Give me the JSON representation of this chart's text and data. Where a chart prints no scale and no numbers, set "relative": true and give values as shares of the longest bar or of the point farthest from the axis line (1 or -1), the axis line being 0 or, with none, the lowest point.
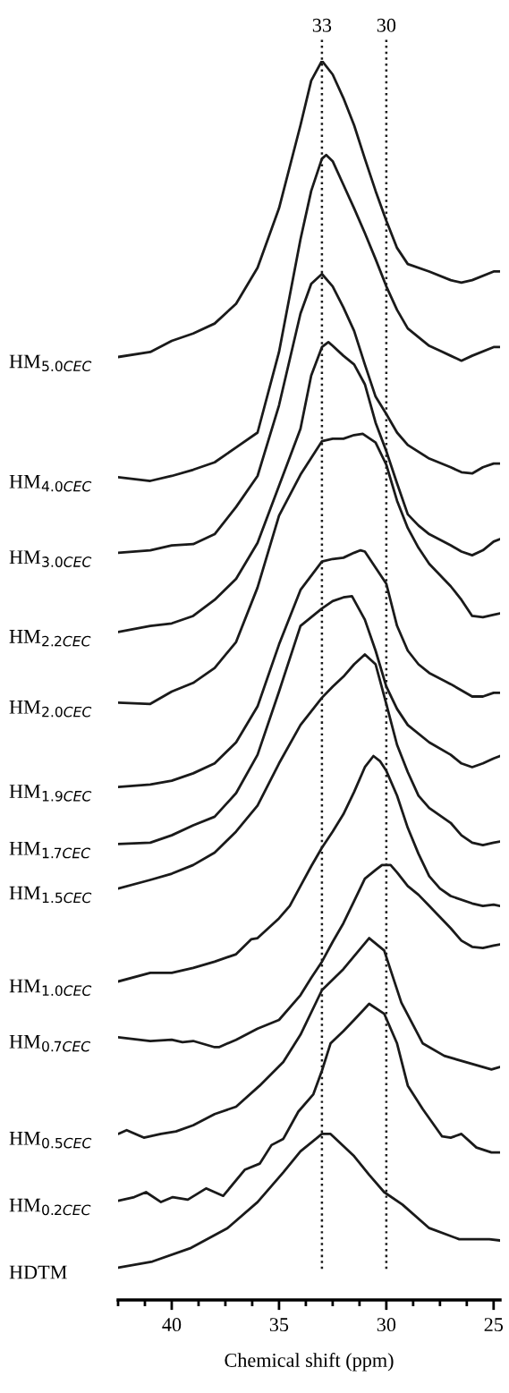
{
  "chart_data": {
    "type": "line",
    "xlabel": "Chemical shift (ppm)",
    "relative": true,
    "tick_labels": "x",
    "line_style": "solid",
    "xlim": [
      42.5,
      24.7
    ],
    "xticks": [
      40,
      35,
      30,
      25,
      {
        "value": 42.5,
        "label": null
      },
      {
        "value": 41.25,
        "label": null
      },
      {
        "value": 38.75,
        "label": null
      },
      {
        "value": 37.5,
        "label": null
      },
      {
        "value": 36.25,
        "label": null
      },
      {
        "value": 33.75,
        "label": null
      },
      {
        "value": 32.5,
        "label": null
      },
      {
        "value": 31.25,
        "label": null
      },
      {
        "value": 28.75,
        "label": null
      },
      {
        "value": 27.5,
        "label": null
      },
      {
        "value": 26.25,
        "label": null
      }
    ],
    "ref_lines": [
      {
        "axis": "x",
        "value": 33,
        "label": "33",
        "color": "#1a1a1a",
        "line_style": "dotted"
      },
      {
        "axis": "x",
        "value": 30,
        "label": "30",
        "color": "#1a1a1a",
        "line_style": "dotted"
      }
    ],
    "series": [
      {
        "name": "HM$_{5.0CEC}$",
        "color": "#1a1a1a",
        "x": [
          42.5,
          41,
          40,
          39,
          38,
          37,
          36,
          35,
          34,
          33.5,
          33,
          32.5,
          32,
          31.5,
          31,
          30.5,
          30,
          29.5,
          29,
          28,
          27,
          26.5,
          26,
          25,
          24.7
        ],
        "values": [
          0.761,
          0.765,
          0.774,
          0.78,
          0.788,
          0.804,
          0.833,
          0.881,
          0.948,
          0.984,
          1,
          0.989,
          0.97,
          0.948,
          0.921,
          0.895,
          0.871,
          0.849,
          0.836,
          0.83,
          0.823,
          0.821,
          0.823,
          0.83,
          0.83
        ]
      },
      {
        "name": "HM$_{4.0CEC}$",
        "color": "#1a1a1a",
        "x": [
          42.5,
          41,
          40,
          39,
          38,
          37,
          36,
          35,
          34,
          33.5,
          33,
          32.8,
          32.5,
          32,
          31.5,
          31,
          30.5,
          30,
          29.5,
          29,
          28,
          27.5,
          27,
          26.5,
          26,
          25,
          24.7
        ],
        "values": [
          0.664,
          0.661,
          0.665,
          0.67,
          0.676,
          0.688,
          0.7,
          0.765,
          0.856,
          0.895,
          0.921,
          0.924,
          0.919,
          0.9,
          0.881,
          0.861,
          0.84,
          0.818,
          0.799,
          0.784,
          0.77,
          0.766,
          0.762,
          0.758,
          0.762,
          0.769,
          0.769
        ]
      },
      {
        "name": "HM$_{3.0CEC}$",
        "color": "#1a1a1a",
        "x": [
          42.5,
          41,
          40,
          39,
          38,
          37,
          36,
          35,
          34,
          33.5,
          33,
          32.5,
          32,
          31.5,
          31,
          30.5,
          30,
          29.5,
          29,
          28,
          27,
          26.5,
          26,
          25.5,
          25,
          24.7
        ],
        "values": [
          0.603,
          0.605,
          0.609,
          0.61,
          0.618,
          0.64,
          0.665,
          0.722,
          0.796,
          0.82,
          0.828,
          0.818,
          0.801,
          0.782,
          0.755,
          0.729,
          0.715,
          0.7,
          0.69,
          0.679,
          0.672,
          0.668,
          0.667,
          0.672,
          0.675,
          0.675
        ]
      },
      {
        "name": "HM$_{2.2CEC}$",
        "color": "#1a1a1a",
        "x": [
          42.5,
          41,
          40,
          39,
          38,
          37,
          36,
          35,
          34,
          33.5,
          33,
          32.7,
          32.5,
          32,
          31.5,
          31,
          30.5,
          30,
          29.5,
          29,
          28.5,
          28,
          27,
          26.5,
          26,
          25.5,
          25,
          24.7
        ],
        "values": [
          0.539,
          0.544,
          0.546,
          0.552,
          0.565,
          0.582,
          0.611,
          0.657,
          0.703,
          0.746,
          0.769,
          0.773,
          0.77,
          0.762,
          0.755,
          0.739,
          0.708,
          0.685,
          0.659,
          0.634,
          0.625,
          0.618,
          0.609,
          0.604,
          0.601,
          0.605,
          0.612,
          0.614
        ]
      },
      {
        "name": "HM$_{2.0CEC}$",
        "color": "#1a1a1a",
        "x": [
          42.5,
          41,
          40,
          39,
          38,
          37,
          36,
          35,
          34,
          33,
          32.5,
          32,
          31.5,
          31.1,
          30.5,
          30,
          29.5,
          29,
          28.5,
          28,
          27,
          26.5,
          26,
          25.5,
          25,
          24.7
        ],
        "values": [
          0.482,
          0.481,
          0.491,
          0.498,
          0.51,
          0.531,
          0.575,
          0.633,
          0.666,
          0.693,
          0.695,
          0.695,
          0.698,
          0.699,
          0.692,
          0.674,
          0.645,
          0.623,
          0.607,
          0.594,
          0.576,
          0.565,
          0.552,
          0.551,
          0.553,
          0.554
        ]
      },
      {
        "name": "HM$_{1.9CEC}$",
        "color": "#1a1a1a",
        "x": [
          42.5,
          41,
          40,
          39,
          38,
          37,
          36,
          35,
          34,
          33,
          32.5,
          32,
          31.5,
          31.2,
          31,
          30.5,
          30,
          29.5,
          29,
          28.5,
          28,
          27,
          26,
          25.5,
          25,
          24.7
        ],
        "values": [
          0.414,
          0.416,
          0.419,
          0.425,
          0.433,
          0.45,
          0.479,
          0.529,
          0.573,
          0.596,
          0.598,
          0.599,
          0.603,
          0.605,
          0.604,
          0.591,
          0.578,
          0.544,
          0.524,
          0.513,
          0.506,
          0.497,
          0.487,
          0.487,
          0.49,
          0.49
        ]
      },
      {
        "name": "HM$_{1.7CEC}$",
        "color": "#1a1a1a",
        "x": [
          42.5,
          41,
          40,
          39,
          38,
          37,
          36,
          35,
          34,
          33,
          32.5,
          32,
          31.6,
          31,
          30.5,
          30,
          29.5,
          29,
          28,
          27,
          26.5,
          26,
          25.5,
          25,
          24.7
        ],
        "values": [
          0.368,
          0.369,
          0.375,
          0.383,
          0.39,
          0.409,
          0.44,
          0.491,
          0.544,
          0.558,
          0.564,
          0.567,
          0.568,
          0.549,
          0.524,
          0.495,
          0.477,
          0.464,
          0.45,
          0.44,
          0.433,
          0.43,
          0.433,
          0.437,
          0.439
        ]
      },
      {
        "name": "HM$_{1.5CEC}$",
        "color": "#1a1a1a",
        "x": [
          42.5,
          41,
          40,
          39,
          38,
          37,
          36,
          35,
          34,
          33,
          32.5,
          32,
          31.5,
          31,
          30.5,
          30,
          29.5,
          29,
          28.5,
          28,
          27,
          26.5,
          26,
          25.5,
          25,
          24.7
        ],
        "values": [
          0.332,
          0.339,
          0.344,
          0.351,
          0.361,
          0.378,
          0.399,
          0.433,
          0.464,
          0.486,
          0.495,
          0.503,
          0.513,
          0.521,
          0.513,
          0.481,
          0.448,
          0.426,
          0.407,
          0.397,
          0.385,
          0.375,
          0.369,
          0.367,
          0.369,
          0.37
        ]
      },
      {
        "name": "HM$_{1.0CEC}$",
        "color": "#1a1a1a",
        "x": [
          42.5,
          41,
          40,
          39,
          38,
          37,
          36.3,
          36,
          35,
          34.5,
          34,
          33.5,
          33,
          32.5,
          32,
          31.5,
          31,
          30.6,
          30.3,
          30,
          29.5,
          29,
          28.5,
          28,
          27.5,
          27,
          26,
          25.5,
          25,
          24.7
        ],
        "values": [
          0.257,
          0.264,
          0.264,
          0.268,
          0.273,
          0.279,
          0.291,
          0.292,
          0.308,
          0.318,
          0.334,
          0.35,
          0.365,
          0.378,
          0.392,
          0.41,
          0.43,
          0.439,
          0.435,
          0.427,
          0.407,
          0.381,
          0.36,
          0.342,
          0.332,
          0.326,
          0.32,
          0.318,
          0.319,
          0.318
        ]
      },
      {
        "name": "HM$_{0.7CEC}$",
        "color": "#1a1a1a",
        "x": [
          42.5,
          41,
          40,
          39.5,
          39,
          38,
          37.8,
          37,
          36,
          35,
          34,
          33.5,
          33,
          32.5,
          32,
          31.5,
          31,
          30.5,
          30.2,
          29.8,
          29.5,
          29,
          28.5,
          28,
          27.5,
          27,
          26.5,
          26,
          25.5,
          25,
          24.7
        ],
        "values": [
          0.212,
          0.209,
          0.21,
          0.208,
          0.209,
          0.204,
          0.204,
          0.21,
          0.219,
          0.226,
          0.246,
          0.26,
          0.273,
          0.289,
          0.304,
          0.322,
          0.34,
          0.347,
          0.351,
          0.351,
          0.345,
          0.334,
          0.327,
          0.318,
          0.309,
          0.3,
          0.29,
          0.285,
          0.284,
          0.286,
          0.287
        ]
      },
      {
        "name": "HM$_{0.5CEC}$",
        "color": "#1a1a1a",
        "x": [
          42.5,
          42.1,
          41.3,
          40.5,
          39.8,
          39,
          38,
          37,
          35.9,
          34.8,
          34,
          33,
          32,
          30.8,
          30.1,
          29.3,
          28.3,
          27.3,
          25.9,
          25.1,
          24.7
        ],
        "values": [
          0.134,
          0.137,
          0.131,
          0.134,
          0.136,
          0.141,
          0.15,
          0.156,
          0.173,
          0.192,
          0.214,
          0.25,
          0.267,
          0.292,
          0.282,
          0.24,
          0.207,
          0.197,
          0.19,
          0.186,
          0.188
        ]
      },
      {
        "name": "HM$_{0.2CEC}$",
        "color": "#1a1a1a",
        "x": [
          42.5,
          41.75,
          41.2,
          40.5,
          39.95,
          39.25,
          38.4,
          37.6,
          36.6,
          35.9,
          35.35,
          34.8,
          34.1,
          33.4,
          33,
          32.6,
          32,
          31.5,
          30.8,
          30.1,
          29.5,
          29,
          28.3,
          27.4,
          27,
          26.5,
          25.8,
          25.1,
          24.7
        ],
        "values": [
          0.08,
          0.083,
          0.087,
          0.079,
          0.083,
          0.081,
          0.09,
          0.084,
          0.105,
          0.11,
          0.125,
          0.13,
          0.152,
          0.166,
          0.185,
          0.207,
          0.217,
          0.226,
          0.239,
          0.231,
          0.207,
          0.173,
          0.154,
          0.132,
          0.131,
          0.134,
          0.123,
          0.119,
          0.119
        ]
      },
      {
        "name": "HDTM",
        "color": "#1a1a1a",
        "x": [
          42.5,
          40.9,
          39.1,
          37.4,
          36,
          34.8,
          34,
          33,
          32.6,
          31.5,
          30.8,
          30.1,
          29.25,
          28,
          26.6,
          25.2,
          24.7
        ],
        "values": [
          0.026,
          0.031,
          0.042,
          0.058,
          0.079,
          0.103,
          0.12,
          0.134,
          0.134,
          0.116,
          0.101,
          0.087,
          0.077,
          0.058,
          0.049,
          0.049,
          0.048
        ]
      }
    ]
  }
}
